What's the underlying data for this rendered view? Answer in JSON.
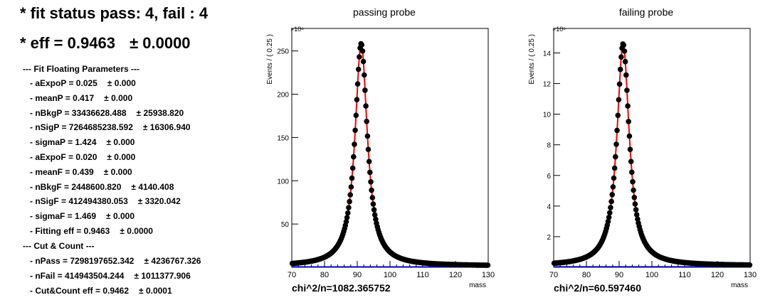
{
  "summary": {
    "fit_status": "* fit status pass: 4, fail : 4",
    "eff_label": "* eff = 0.9463",
    "eff_err": "± 0.0000"
  },
  "fit_params": {
    "header": "--- Fit Floating Parameters ---",
    "items": [
      {
        "label": "- aExpoP = 0.025",
        "err": "± 0.000"
      },
      {
        "label": "- meanP = 0.417",
        "err": "± 0.000"
      },
      {
        "label": "- nBkgP = 33436628.488",
        "err": "± 25938.820"
      },
      {
        "label": "- nSigP = 7264685238.592",
        "err": "± 16306.940"
      },
      {
        "label": "- sigmaP = 1.424",
        "err": "± 0.000"
      },
      {
        "label": "- aExpoF = 0.020",
        "err": "± 0.000"
      },
      {
        "label": "- meanF = 0.439",
        "err": "± 0.000"
      },
      {
        "label": "- nBkgF = 2448600.820",
        "err": "± 4140.408"
      },
      {
        "label": "- nSigF = 412494380.053",
        "err": "± 3320.042"
      },
      {
        "label": "- sigmaF = 1.469",
        "err": "± 0.000"
      },
      {
        "label": "- Fitting eff = 0.9463",
        "err": "± 0.0000"
      }
    ]
  },
  "cut_count": {
    "header": "--- Cut & Count ---",
    "items": [
      {
        "label": "- nPass = 7298197652.342",
        "err": "± 4236767.326"
      },
      {
        "label": "- nFail = 414943504.244",
        "err": "± 1011377.906"
      },
      {
        "label": "- Cut&Count eff = 0.9462",
        "err": "± 0.0001"
      }
    ]
  },
  "chart_data": [
    {
      "type": "scatter",
      "title": "passing probe",
      "xlabel": "mass",
      "ylabel": "Events / ( 0.25 )",
      "y_multiplier": "×10⁶",
      "xlim": [
        70,
        130
      ],
      "ylim": [
        0,
        276
      ],
      "xticks": [
        "70",
        "80",
        "90",
        "100",
        "110",
        "120",
        "130"
      ],
      "yticks": [
        "50",
        "100",
        "150",
        "200",
        "250"
      ],
      "chi2_text": "chi^2/n=1082.365752",
      "peak": {
        "mean": 91.2,
        "width": 2.5,
        "height": 257,
        "background": 1.5
      },
      "series": [
        {
          "role": "data points",
          "color": "#000000"
        },
        {
          "role": "fit curve",
          "color": "#ff0000"
        },
        {
          "role": "background",
          "color": "#0000cc"
        }
      ]
    },
    {
      "type": "scatter",
      "title": "failing probe",
      "xlabel": "mass",
      "ylabel": "Events / ( 0.25 )",
      "y_multiplier": "×10⁶",
      "xlim": [
        70,
        130
      ],
      "ylim": [
        0,
        15.6
      ],
      "xticks": [
        "70",
        "80",
        "90",
        "100",
        "110",
        "120",
        "130"
      ],
      "yticks": [
        "2",
        "4",
        "6",
        "8",
        "10",
        "12",
        "14"
      ],
      "chi2_text": "chi^2/n=60.597460",
      "peak": {
        "mean": 91.2,
        "width": 2.5,
        "height": 14.5,
        "background": 0.1
      },
      "series": [
        {
          "role": "data points",
          "color": "#000000"
        },
        {
          "role": "fit curve",
          "color": "#ff0000"
        },
        {
          "role": "background",
          "color": "#0000cc"
        }
      ]
    }
  ]
}
